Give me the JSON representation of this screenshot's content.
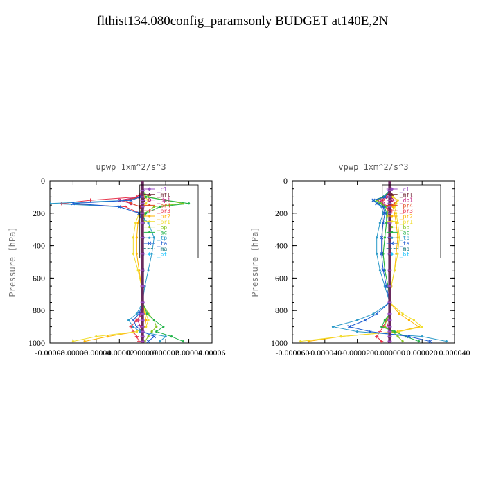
{
  "main_title": "flthist134.080config_paramsonly  BUDGET at140E,2N",
  "series_styles": [
    {
      "name": "_cl",
      "color": "#9a4fc4",
      "marker": "diamond"
    },
    {
      "name": "_mfl",
      "color": "#6b1f2e",
      "marker": "triangle"
    },
    {
      "name": "_dp1",
      "color": "#c0187a",
      "marker": "circle"
    },
    {
      "name": "_pr4",
      "color": "#e24a1e",
      "marker": "dot"
    },
    {
      "name": "_pr3",
      "color": "#e8344a",
      "marker": "plus"
    },
    {
      "name": "_pr2",
      "color": "#ffb400",
      "marker": "dot"
    },
    {
      "name": "_pr1",
      "color": "#f0dd2a",
      "marker": "dot"
    },
    {
      "name": "_bp",
      "color": "#84c41c",
      "marker": "dot"
    },
    {
      "name": "_ac",
      "color": "#22b44a",
      "marker": "dot"
    },
    {
      "name": "_tp",
      "color": "#2a9ac8",
      "marker": "dot"
    },
    {
      "name": "_ta",
      "color": "#1a5ad0",
      "marker": "cross"
    },
    {
      "name": "_ma",
      "color": "#0a7078",
      "marker": "none"
    },
    {
      "name": "_bt",
      "color": "#28c8ff",
      "marker": "diamond"
    }
  ],
  "chart_data": [
    {
      "type": "line",
      "title": "upwp  1xm^2/s^3",
      "ylabel": "Pressure [hPa]",
      "xlabel": "",
      "ylim": [
        1000,
        0
      ],
      "xlim": [
        -8e-05,
        6e-05
      ],
      "yticks": [
        0,
        200,
        400,
        600,
        800,
        1000
      ],
      "xticks": [
        -8e-05,
        -6e-05,
        -4e-05,
        -2e-05,
        0,
        2e-05,
        4e-05,
        6e-05
      ],
      "xtick_labels": [
        "-0.00008",
        "-0.00006",
        "-0.00004",
        "-0.00002",
        "0.000000",
        "0.00002",
        "0.00004",
        "0.00006"
      ],
      "grid": false,
      "legend_position": "top-right",
      "levels": [
        60,
        100,
        120,
        140,
        160,
        200,
        260,
        350,
        450,
        550,
        650,
        750,
        820,
        860,
        900,
        930,
        960,
        990
      ],
      "series": [
        {
          "name": "_cl",
          "values": [
            0,
            0,
            0,
            0,
            0,
            0,
            0,
            0,
            0,
            0,
            0,
            0,
            0,
            0,
            0,
            0,
            0,
            0
          ]
        },
        {
          "name": "_mfl",
          "values": [
            0,
            2e-06,
            1e-06,
            0,
            0,
            0,
            0,
            0,
            0,
            0,
            0,
            0,
            0,
            0,
            0,
            0,
            0,
            0
          ]
        },
        {
          "name": "_dp1",
          "values": [
            0,
            -3e-06,
            -2e-05,
            -1e-05,
            -2e-06,
            0,
            0,
            0,
            0,
            0,
            0,
            0,
            -2e-06,
            -4e-06,
            -2e-06,
            0,
            0,
            0
          ]
        },
        {
          "name": "_pr4",
          "values": [
            0,
            -2e-06,
            -1.5e-05,
            -1e-05,
            -2e-06,
            0,
            0,
            0,
            0,
            0,
            0,
            0,
            0,
            0,
            0,
            0,
            0,
            0
          ]
        },
        {
          "name": "_pr3",
          "values": [
            0,
            -5e-06,
            -4.5e-05,
            -7e-05,
            -1.5e-05,
            -2e-06,
            0,
            0,
            0,
            0,
            0,
            0,
            0,
            -5e-06,
            -1e-05,
            -8e-06,
            -5e-06,
            -3e-06
          ]
        },
        {
          "name": "_pr2",
          "values": [
            0,
            0,
            0,
            0,
            0,
            -2e-06,
            -4e-06,
            -5e-06,
            -5e-06,
            -3e-06,
            -1e-06,
            0,
            2e-06,
            3e-06,
            2e-06,
            -5e-06,
            -3e-05,
            -5e-05
          ]
        },
        {
          "name": "_pr1",
          "values": [
            0,
            2e-06,
            5e-06,
            3e-06,
            0,
            -3e-06,
            -6e-06,
            -8e-06,
            -8e-06,
            -4e-06,
            -1e-06,
            0,
            3e-06,
            5e-06,
            3e-06,
            -5e-06,
            -4e-05,
            -6e-05
          ]
        },
        {
          "name": "_bp",
          "values": [
            0,
            5e-06,
            2e-05,
            3.5e-05,
            1e-05,
            2e-06,
            0,
            0,
            0,
            0,
            0,
            0,
            5e-06,
            1e-05,
            1.2e-05,
            8e-06,
            5e-06,
            2e-06
          ]
        },
        {
          "name": "_ac",
          "values": [
            0,
            3e-06,
            2e-05,
            4e-05,
            1.5e-05,
            3e-06,
            1e-06,
            0,
            0,
            0,
            0,
            0,
            4e-06,
            1e-05,
            1.8e-05,
            1.2e-05,
            2.5e-05,
            3.5e-05
          ]
        },
        {
          "name": "_tp",
          "values": [
            0,
            -2e-06,
            -1e-05,
            -8e-05,
            -2e-05,
            -3e-06,
            5e-06,
            1e-05,
            8e-06,
            5e-06,
            2e-06,
            0,
            -5e-06,
            -1.2e-05,
            -8e-06,
            -2e-06,
            2e-05,
            1.5e-05
          ]
        },
        {
          "name": "_ta",
          "values": [
            0,
            -2e-06,
            -1e-05,
            -6e-05,
            -2e-05,
            -3e-06,
            0,
            0,
            0,
            0,
            0,
            0,
            -3e-06,
            -8e-06,
            -5e-06,
            0,
            1e-05,
            5e-06
          ]
        },
        {
          "name": "_ma",
          "values": [
            0,
            0,
            0,
            1e-06,
            0,
            0,
            0,
            0,
            0,
            0,
            0,
            0,
            0,
            0,
            0,
            0,
            0,
            0
          ]
        },
        {
          "name": "_bt",
          "values": [
            0,
            0,
            0,
            0,
            0,
            0,
            0,
            0,
            0,
            0,
            0,
            0,
            0,
            0,
            0,
            0,
            0,
            0
          ]
        }
      ]
    },
    {
      "type": "line",
      "title": "vpwp  1xm^2/s^3",
      "ylabel": "Pressure [hPa]",
      "xlabel": "",
      "ylim": [
        1000,
        0
      ],
      "xlim": [
        -6e-05,
        4e-05
      ],
      "yticks": [
        0,
        200,
        400,
        600,
        800,
        1000
      ],
      "xticks": [
        -6e-05,
        -4e-05,
        -2e-05,
        0,
        2e-05,
        4e-05
      ],
      "xtick_labels": [
        "-0.000060",
        "-0.000040",
        "-0.000020",
        "0.000000",
        "0.000020",
        "0.000040"
      ],
      "grid": false,
      "legend_position": "top-right",
      "levels": [
        60,
        100,
        120,
        140,
        160,
        200,
        260,
        350,
        450,
        550,
        650,
        750,
        820,
        860,
        900,
        930,
        960,
        990
      ],
      "series": [
        {
          "name": "_cl",
          "values": [
            0,
            0,
            0,
            0,
            0,
            0,
            0,
            0,
            0,
            0,
            0,
            0,
            0,
            0,
            0,
            0,
            0,
            0
          ]
        },
        {
          "name": "_mfl",
          "values": [
            0,
            1e-06,
            1e-06,
            0,
            0,
            0,
            0,
            0,
            0,
            0,
            0,
            0,
            0,
            0,
            0,
            0,
            0,
            0
          ]
        },
        {
          "name": "_dp1",
          "values": [
            0,
            -2e-06,
            -6e-06,
            -4e-06,
            -1e-06,
            0,
            0,
            0,
            0,
            0,
            0,
            0,
            0,
            -2e-06,
            -1e-06,
            0,
            0,
            0
          ]
        },
        {
          "name": "_pr4",
          "values": [
            0,
            2e-06,
            5e-06,
            3e-06,
            0,
            0,
            0,
            0,
            0,
            0,
            0,
            0,
            0,
            0,
            0,
            0,
            0,
            0
          ]
        },
        {
          "name": "_pr3",
          "values": [
            0,
            -2e-06,
            -4e-06,
            -6e-06,
            -2e-06,
            0,
            0,
            0,
            0,
            0,
            0,
            0,
            0,
            -2e-06,
            -4e-06,
            -6e-06,
            -8e-06,
            -5e-06
          ]
        },
        {
          "name": "_pr2",
          "values": [
            0,
            2e-06,
            5e-06,
            4e-06,
            2e-06,
            3e-06,
            4e-06,
            5e-06,
            4e-06,
            3e-06,
            1e-06,
            0,
            6e-06,
            1.2e-05,
            1.8e-05,
            5e-06,
            -3e-05,
            -5e-05
          ]
        },
        {
          "name": "_pr1",
          "values": [
            0,
            2e-06,
            5e-06,
            4e-06,
            3e-06,
            4e-06,
            5e-06,
            6e-06,
            5e-06,
            3e-06,
            1e-06,
            0,
            8e-06,
            1.5e-05,
            2e-05,
            6e-06,
            -3e-05,
            -5.5e-05
          ]
        },
        {
          "name": "_bp",
          "values": [
            0,
            -3e-06,
            -8e-06,
            -5e-06,
            -2e-06,
            -1e-06,
            -2e-06,
            -3e-06,
            -4e-06,
            -3e-06,
            -1e-06,
            0,
            0,
            -2e-06,
            -3e-06,
            2e-06,
            5e-06,
            8e-06
          ]
        },
        {
          "name": "_ac",
          "values": [
            0,
            -4e-06,
            -1e-05,
            -6e-06,
            -3e-06,
            -2e-06,
            -2e-06,
            -3e-06,
            -4e-06,
            -3e-06,
            -1e-06,
            0,
            0,
            -3e-06,
            -5e-06,
            3e-06,
            1e-05,
            1.8e-05
          ]
        },
        {
          "name": "_tp",
          "values": [
            0,
            -3e-06,
            -1e-05,
            -8e-06,
            -5e-06,
            -4e-06,
            -6e-06,
            -8e-06,
            -8e-06,
            -6e-06,
            -3e-06,
            0,
            -1e-05,
            -2e-05,
            -3.5e-05,
            -2e-05,
            2e-05,
            3.5e-05
          ]
        },
        {
          "name": "_ta",
          "values": [
            0,
            -3e-06,
            -1e-05,
            -8e-06,
            -4e-06,
            -3e-06,
            -4e-06,
            -5e-06,
            -5e-06,
            -4e-06,
            -2e-06,
            0,
            -8e-06,
            -1.5e-05,
            -2.5e-05,
            -1.2e-05,
            1.2e-05,
            2.5e-05
          ]
        },
        {
          "name": "_ma",
          "values": [
            0,
            0,
            0,
            0,
            0,
            0,
            0,
            0,
            0,
            0,
            0,
            0,
            0,
            0,
            0,
            0,
            0,
            0
          ]
        },
        {
          "name": "_bt",
          "values": [
            0,
            0,
            0,
            0,
            0,
            0,
            0,
            0,
            0,
            0,
            0,
            0,
            0,
            0,
            0,
            0,
            0,
            0
          ]
        }
      ]
    }
  ]
}
